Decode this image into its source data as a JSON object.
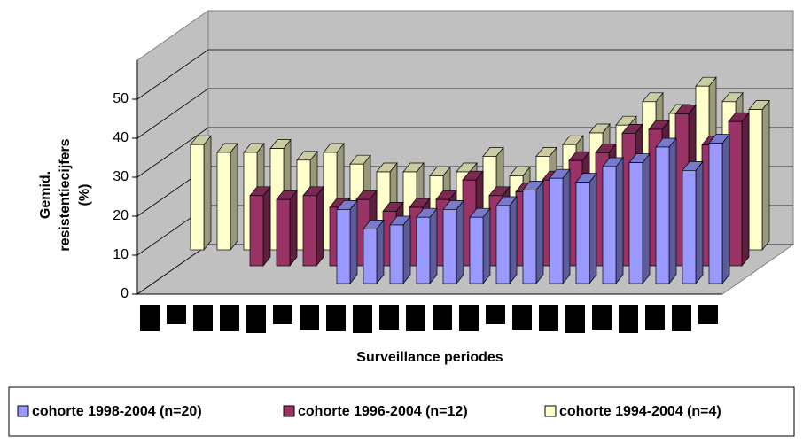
{
  "chart_data": {
    "type": "bar3d",
    "xlabel": "Surveillance periodes",
    "ylabel": [
      "Gemid.",
      "resistentiecijfers",
      "(%)"
    ],
    "categories": [
      null,
      null,
      null,
      null,
      null,
      null,
      null,
      null,
      null,
      null,
      null,
      null,
      null,
      null,
      null,
      null,
      null,
      null,
      null,
      null,
      null,
      null
    ],
    "ylim": [
      0,
      60
    ],
    "yticks": [
      0,
      10,
      20,
      30,
      40,
      50
    ],
    "grid": true,
    "series": [
      {
        "name": "cohorte 1998-2004 (n=20)",
        "color": "#9999ff",
        "values": [
          null,
          null,
          null,
          null,
          null,
          null,
          null,
          19,
          14,
          15,
          17,
          19,
          17,
          20,
          24,
          27,
          26,
          30,
          31,
          35,
          29,
          36
        ]
      },
      {
        "name": "cohorte 1996-2004 (n=12)",
        "color": "#993366",
        "values": [
          null,
          null,
          null,
          18,
          17,
          18,
          15,
          17,
          14,
          15,
          17,
          22,
          18,
          19,
          22,
          27,
          29,
          34,
          35,
          39,
          31,
          37
        ]
      },
      {
        "name": "cohorte 1994-2004 (n=4)",
        "color": "#ffffcc",
        "values": [
          27,
          25,
          25,
          26,
          23,
          25,
          22,
          20,
          20,
          19,
          20,
          24,
          19,
          24,
          27,
          30,
          32,
          38,
          35,
          42,
          38,
          36
        ]
      }
    ]
  }
}
